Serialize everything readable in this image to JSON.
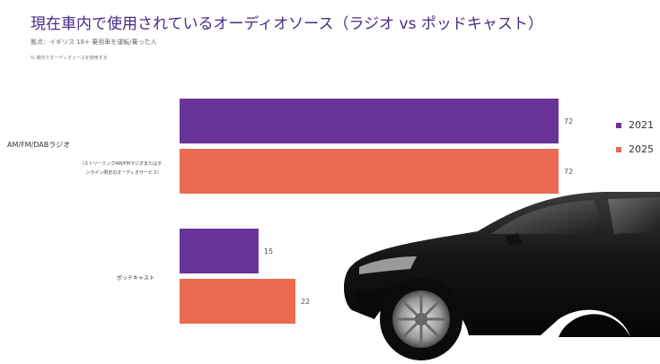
{
  "title": "現在車内で使用されているオーディオソース（ラジオ vs ポッドキャスト）",
  "subtitle": "拠点：イギリス 18+ 乗用車を運転/乗った人",
  "note": "% 車内でオーディオソースを使用する",
  "colors": {
    "2021": "#6a3397",
    "2025": "#ea6b51"
  },
  "chart_data": {
    "type": "bar",
    "orientation": "horizontal",
    "title": "現在車内で使用されているオーディオソース（ラジオ vs ポッドキャスト）",
    "categories": [
      "AM/FM/DABラジオ",
      "ポッドキャスト"
    ],
    "category_notes": [
      "（ストリーミングAM/FMラジオまたはオンライン限定のオーディオサービス）",
      ""
    ],
    "series": [
      {
        "name": "2021",
        "values": [
          72,
          15
        ]
      },
      {
        "name": "2025",
        "values": [
          72,
          22
        ]
      }
    ],
    "xlim": [
      0,
      100
    ],
    "legend": "right",
    "grid": false
  },
  "legend_labels": [
    "2021",
    "2025"
  ],
  "category_labels": {
    "radio": "AM/FM/DABラジオ",
    "radio_note_1": "（ストリーミングAM/FMラジオまたはオ",
    "radio_note_2": "ンライン限定のオーディオサービス）",
    "podcast": "ポッドキャスト"
  },
  "image": {
    "icon": "car-photo"
  }
}
